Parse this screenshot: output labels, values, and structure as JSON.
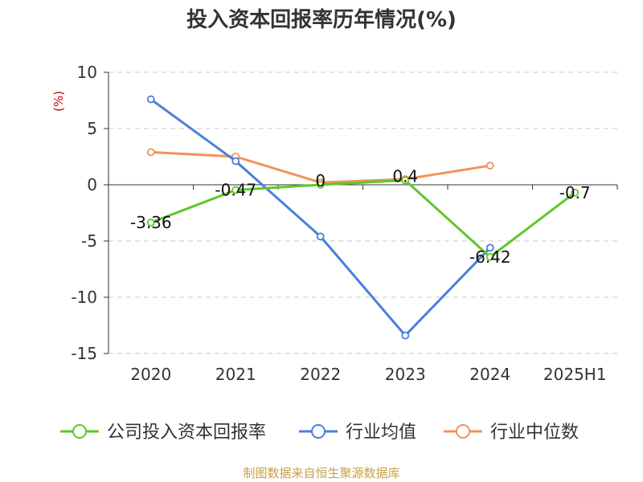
{
  "chart_data": {
    "type": "line",
    "title": "投入资本回报率历年情况(%)",
    "unit_label": "(%)",
    "categories": [
      "2020",
      "2021",
      "2022",
      "2023",
      "2024",
      "2025H1"
    ],
    "ylim": [
      -15,
      10
    ],
    "yticks": [
      10,
      5,
      0,
      -5,
      -10,
      -15
    ],
    "grid": true,
    "legend_position": "bottom",
    "series": [
      {
        "name": "公司投入资本回报率",
        "color": "#5fc72a",
        "values": [
          -3.36,
          -0.47,
          0,
          0.4,
          -6.42,
          -0.7
        ],
        "labels": [
          "-3.36",
          "-0.47",
          "0",
          "0.4",
          "-6.42",
          "-0.7"
        ]
      },
      {
        "name": "行业均值",
        "color": "#4a7fdc",
        "values": [
          7.6,
          2.1,
          -4.6,
          -13.4,
          -5.6,
          null
        ]
      },
      {
        "name": "行业中位数",
        "color": "#f4915a",
        "values": [
          2.9,
          2.5,
          0.2,
          0.5,
          1.7,
          null
        ]
      }
    ]
  },
  "footer": {
    "source": "制图数据来自恒生聚源数据库"
  }
}
